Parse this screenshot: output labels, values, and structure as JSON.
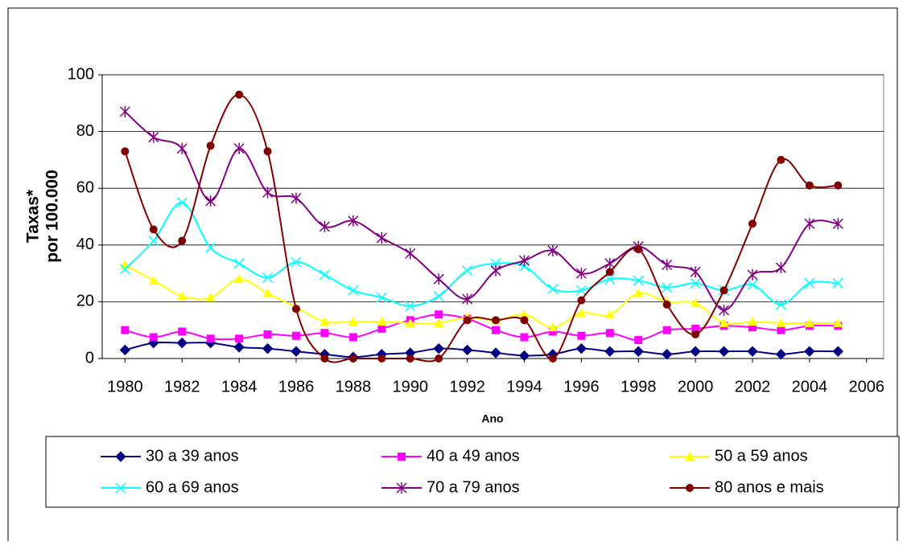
{
  "chart_data": {
    "type": "line",
    "y_label": [
      "Taxas*",
      "por 100.000"
    ],
    "x_label": "Ano",
    "x": [
      1980,
      1981,
      1982,
      1983,
      1984,
      1985,
      1986,
      1987,
      1988,
      1989,
      1990,
      1991,
      1992,
      1993,
      1994,
      1995,
      1996,
      1997,
      1998,
      1999,
      2000,
      2001,
      2002,
      2003,
      2004,
      2005
    ],
    "xlim": [
      1979.2,
      2006.6
    ],
    "xticks": [
      1980,
      1982,
      1984,
      1986,
      1988,
      1990,
      1992,
      1994,
      1996,
      1998,
      2000,
      2002,
      2004,
      2006
    ],
    "ylim": [
      0,
      100
    ],
    "yticks": [
      0,
      20,
      40,
      60,
      80,
      100
    ],
    "grid": true,
    "smooth": true,
    "series": [
      {
        "name": "30 a 39 anos",
        "color": "#000080",
        "marker": "diamond",
        "values": [
          3,
          5.5,
          5.5,
          5.5,
          4,
          3.5,
          2.5,
          1.5,
          0.5,
          1.5,
          2,
          3.5,
          3,
          2,
          1,
          1.5,
          3.5,
          2.5,
          2.5,
          1.5,
          2.5,
          2.5,
          2.5,
          1.5,
          2.5,
          2.5
        ]
      },
      {
        "name": "40 a 49 anos",
        "color": "#ff00ff",
        "marker": "square",
        "values": [
          10,
          7.5,
          9.5,
          7,
          7,
          8.5,
          8,
          9,
          7.5,
          10.5,
          13.5,
          15.5,
          14,
          10,
          7.5,
          9.5,
          8,
          9,
          6.5,
          10,
          10.5,
          11.5,
          11,
          10,
          11.5,
          11.5
        ]
      },
      {
        "name": "50 a 59 anos",
        "color": "#ffff00",
        "marker": "triangle",
        "values": [
          33,
          27.5,
          22,
          21.5,
          28,
          23,
          18,
          13,
          13,
          13,
          12.5,
          12.5,
          14.5,
          13.5,
          15.5,
          11,
          16,
          15.5,
          23,
          20,
          19.5,
          12.5,
          13,
          12.5,
          12.5,
          12.5
        ]
      },
      {
        "name": "60 a 69 anos",
        "color": "#00ffff",
        "marker": "x",
        "values": [
          31.5,
          41.5,
          55,
          39,
          33.5,
          28.5,
          34,
          29.5,
          24,
          21.5,
          18.5,
          22,
          31,
          33.5,
          32.5,
          24.5,
          24,
          28,
          27.5,
          25,
          26.5,
          24,
          26,
          19,
          26.5,
          26.5
        ]
      },
      {
        "name": "70 a 79 anos",
        "color": "#800080",
        "marker": "star",
        "values": [
          87,
          78,
          74,
          55.5,
          74,
          58.5,
          56.5,
          46.5,
          48.5,
          42.5,
          37,
          28,
          21,
          31,
          34.5,
          38,
          30,
          33.5,
          39.5,
          33,
          30.5,
          17,
          29.5,
          32,
          47.5,
          47.5
        ]
      },
      {
        "name": "80 anos e mais",
        "color": "#800000",
        "marker": "circle",
        "values": [
          73,
          45.5,
          41.5,
          75,
          93,
          73,
          17.5,
          0,
          0,
          0,
          0,
          0,
          13.5,
          13.5,
          13.5,
          0,
          20.5,
          30.5,
          38.5,
          19,
          8.5,
          24,
          47.5,
          70,
          61,
          61
        ]
      }
    ]
  }
}
